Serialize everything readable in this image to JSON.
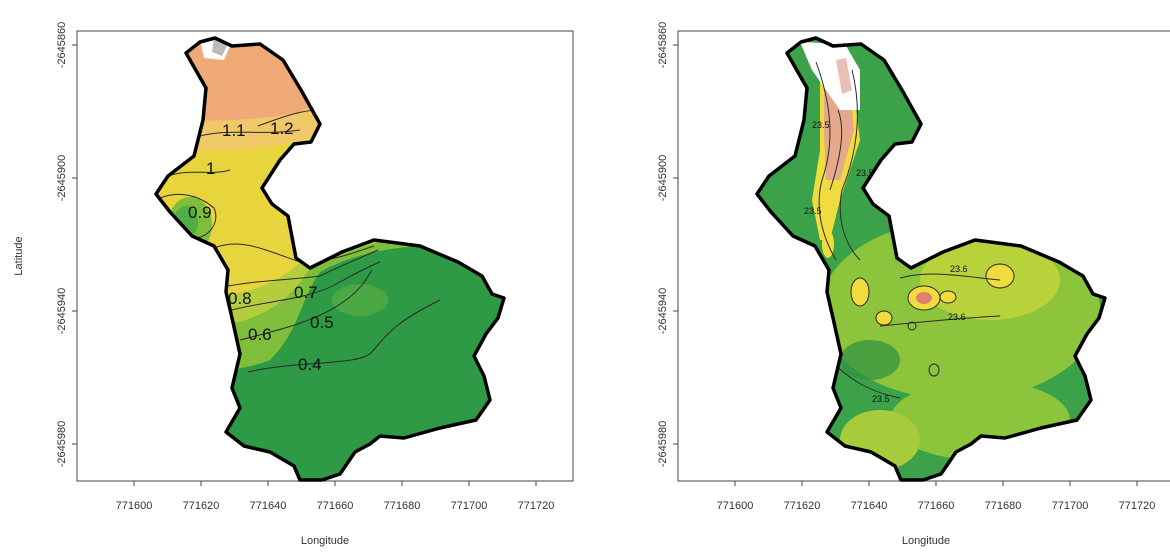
{
  "chart_data": [
    {
      "type": "contour_map",
      "xlabel": "Longitude",
      "ylabel": "Latitude",
      "x_ticks": [
        "771600",
        "771620",
        "771640",
        "771660",
        "771680",
        "771700",
        "771720"
      ],
      "y_ticks": [
        "-2645860",
        "-2645900",
        "-2645940",
        "-2645980"
      ],
      "contour_levels": [
        "1.2",
        "1.1",
        "1",
        "0.9",
        "0.8",
        "0.7",
        "0.6",
        "0.5",
        "0.4"
      ],
      "color_scale": [
        "#2e9a45",
        "#7fbe3a",
        "#e6d23a",
        "#f0a870"
      ]
    },
    {
      "type": "contour_map",
      "xlabel": "Longitude",
      "ylabel": "",
      "x_ticks": [
        "771600",
        "771620",
        "771640",
        "771660",
        "771680",
        "771700",
        "771720"
      ],
      "y_ticks": [
        "-2645860",
        "-2645900",
        "-2645940",
        "-2645980"
      ],
      "contour_levels": [
        "23.5",
        "23.6",
        "23.7"
      ],
      "color_scale": [
        "#3ca24a",
        "#8cc43c",
        "#f0dc3c",
        "#e49a8a",
        "#ffffff"
      ]
    }
  ]
}
